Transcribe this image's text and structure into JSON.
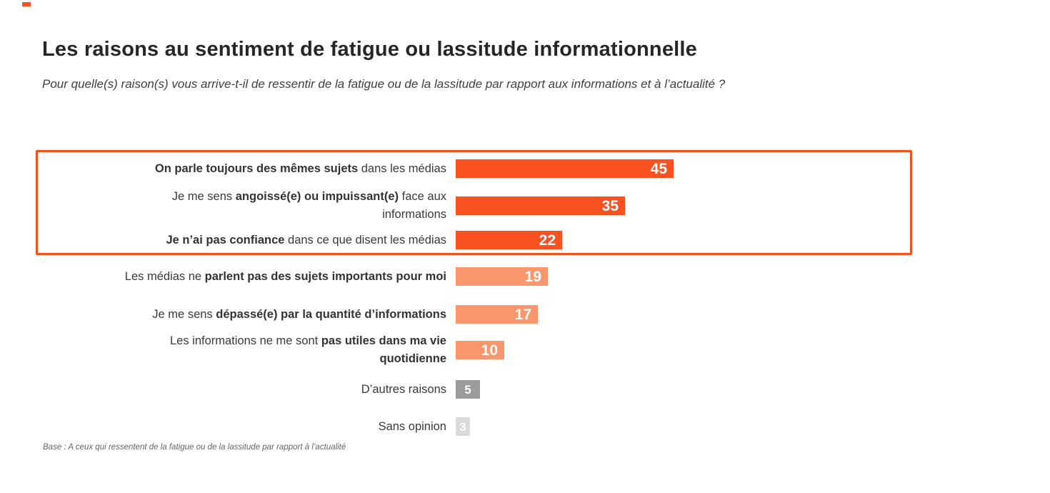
{
  "page": {
    "title": "Les raisons au sentiment de fatigue ou lassitude informationnelle",
    "question": "Pour quelle(s) raison(s) vous arrive-t-il de ressentir de la fatigue ou de la lassitude par rapport aux informations et à l’actualité ?",
    "base_note": "Base : A ceux qui ressentent de la fatigue ou de la lassitude par rapport à l’actualité"
  },
  "chart_data": {
    "type": "bar",
    "orientation": "horizontal",
    "title": "Les raisons au sentiment de fatigue ou lassitude informationnelle",
    "categories": [
      "On parle toujours des mêmes sujets dans les médias",
      "Je me sens angoissé(e) ou impuissant(e) face aux informations",
      "Je n’ai pas confiance dans ce que disent les médias",
      "Les médias ne parlent pas des sujets importants pour moi",
      "Je me sens dépassé(e) par la quantité d’informations",
      "Les informations ne me sont pas utiles dans ma vie quotidienne",
      "D’autres raisons",
      "Sans opinion"
    ],
    "values": [
      45,
      35,
      22,
      19,
      17,
      10,
      5,
      3
    ],
    "bar_colors": [
      "#F95120",
      "#F95120",
      "#F95120",
      "#F9966B",
      "#F9966B",
      "#F9966B",
      "#9B9B9B",
      "#D9D9D9"
    ],
    "value_label_color": "#FFFFFF",
    "xlim": [
      0,
      50
    ],
    "grid": false,
    "legend": "none",
    "highlight": {
      "rows": [
        0,
        1,
        2
      ],
      "border_color": "#F4511E"
    }
  },
  "rows": [
    {
      "segments": [
        {
          "text": "On parle toujours des mêmes sujets",
          "bold": true
        },
        {
          "text": " dans les médias",
          "bold": false
        }
      ]
    },
    {
      "segments": [
        {
          "text": "Je me sens ",
          "bold": false
        },
        {
          "text": "angoissé(e) ou impuissant(e)",
          "bold": true
        },
        {
          "text": " face aux",
          "bold": false
        },
        {
          "break": true
        },
        {
          "text": "informations",
          "bold": false
        }
      ]
    },
    {
      "segments": [
        {
          "text": "Je n’ai pas confiance",
          "bold": true
        },
        {
          "text": " dans ce que disent les médias",
          "bold": false
        }
      ]
    },
    {
      "segments": [
        {
          "text": "Les médias ne ",
          "bold": false
        },
        {
          "text": "parlent pas des sujets importants pour moi",
          "bold": true
        }
      ]
    },
    {
      "segments": [
        {
          "text": "Je me sens ",
          "bold": false
        },
        {
          "text": "dépassé(e) par la quantité d’informations",
          "bold": true
        }
      ]
    },
    {
      "segments": [
        {
          "text": "Les informations ne me sont ",
          "bold": false
        },
        {
          "text": "pas utiles dans ma vie",
          "bold": true
        },
        {
          "break": true
        },
        {
          "text": "quotidienne",
          "bold": true
        }
      ]
    },
    {
      "segments": [
        {
          "text": "D’autres raisons",
          "bold": false
        }
      ]
    },
    {
      "segments": [
        {
          "text": "Sans opinion",
          "bold": false
        }
      ]
    }
  ]
}
